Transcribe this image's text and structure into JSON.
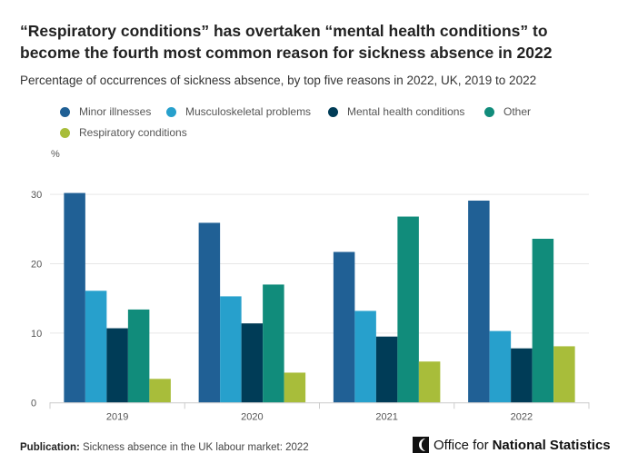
{
  "chart_data": {
    "type": "bar",
    "title": "“Respiratory conditions” has overtaken “mental health conditions” to become the fourth most common reason for sickness absence in 2022",
    "subtitle": "Percentage of occurrences of sickness absence, by top five reasons in 2022, UK, 2019 to 2022",
    "ylabel": "%",
    "xlabel": "",
    "ylim": [
      0,
      32
    ],
    "yticks": [
      "0",
      "10",
      "20",
      "30"
    ],
    "grid": true,
    "legend_position": "top-left",
    "categories": [
      "2019",
      "2020",
      "2021",
      "2022"
    ],
    "series": [
      {
        "name": "Minor illnesses",
        "color": "#206095",
        "values": [
          30.2,
          25.9,
          21.7,
          29.1
        ]
      },
      {
        "name": "Musculoskeletal problems",
        "color": "#27a0cc",
        "values": [
          16.1,
          15.3,
          13.2,
          10.3
        ]
      },
      {
        "name": "Mental health conditions",
        "color": "#003c57",
        "values": [
          10.7,
          11.4,
          9.5,
          7.8
        ]
      },
      {
        "name": "Other",
        "color": "#118c7b",
        "values": [
          13.4,
          17.0,
          26.8,
          23.6
        ]
      },
      {
        "name": "Respiratory conditions",
        "color": "#a8bd3a",
        "values": [
          3.4,
          4.3,
          5.9,
          8.1
        ]
      }
    ]
  },
  "footer": {
    "label": "Publication:",
    "text": "Sickness absence in the UK labour market: 2022"
  },
  "logo": {
    "part1": "Office for",
    "part2": "National Statistics"
  }
}
